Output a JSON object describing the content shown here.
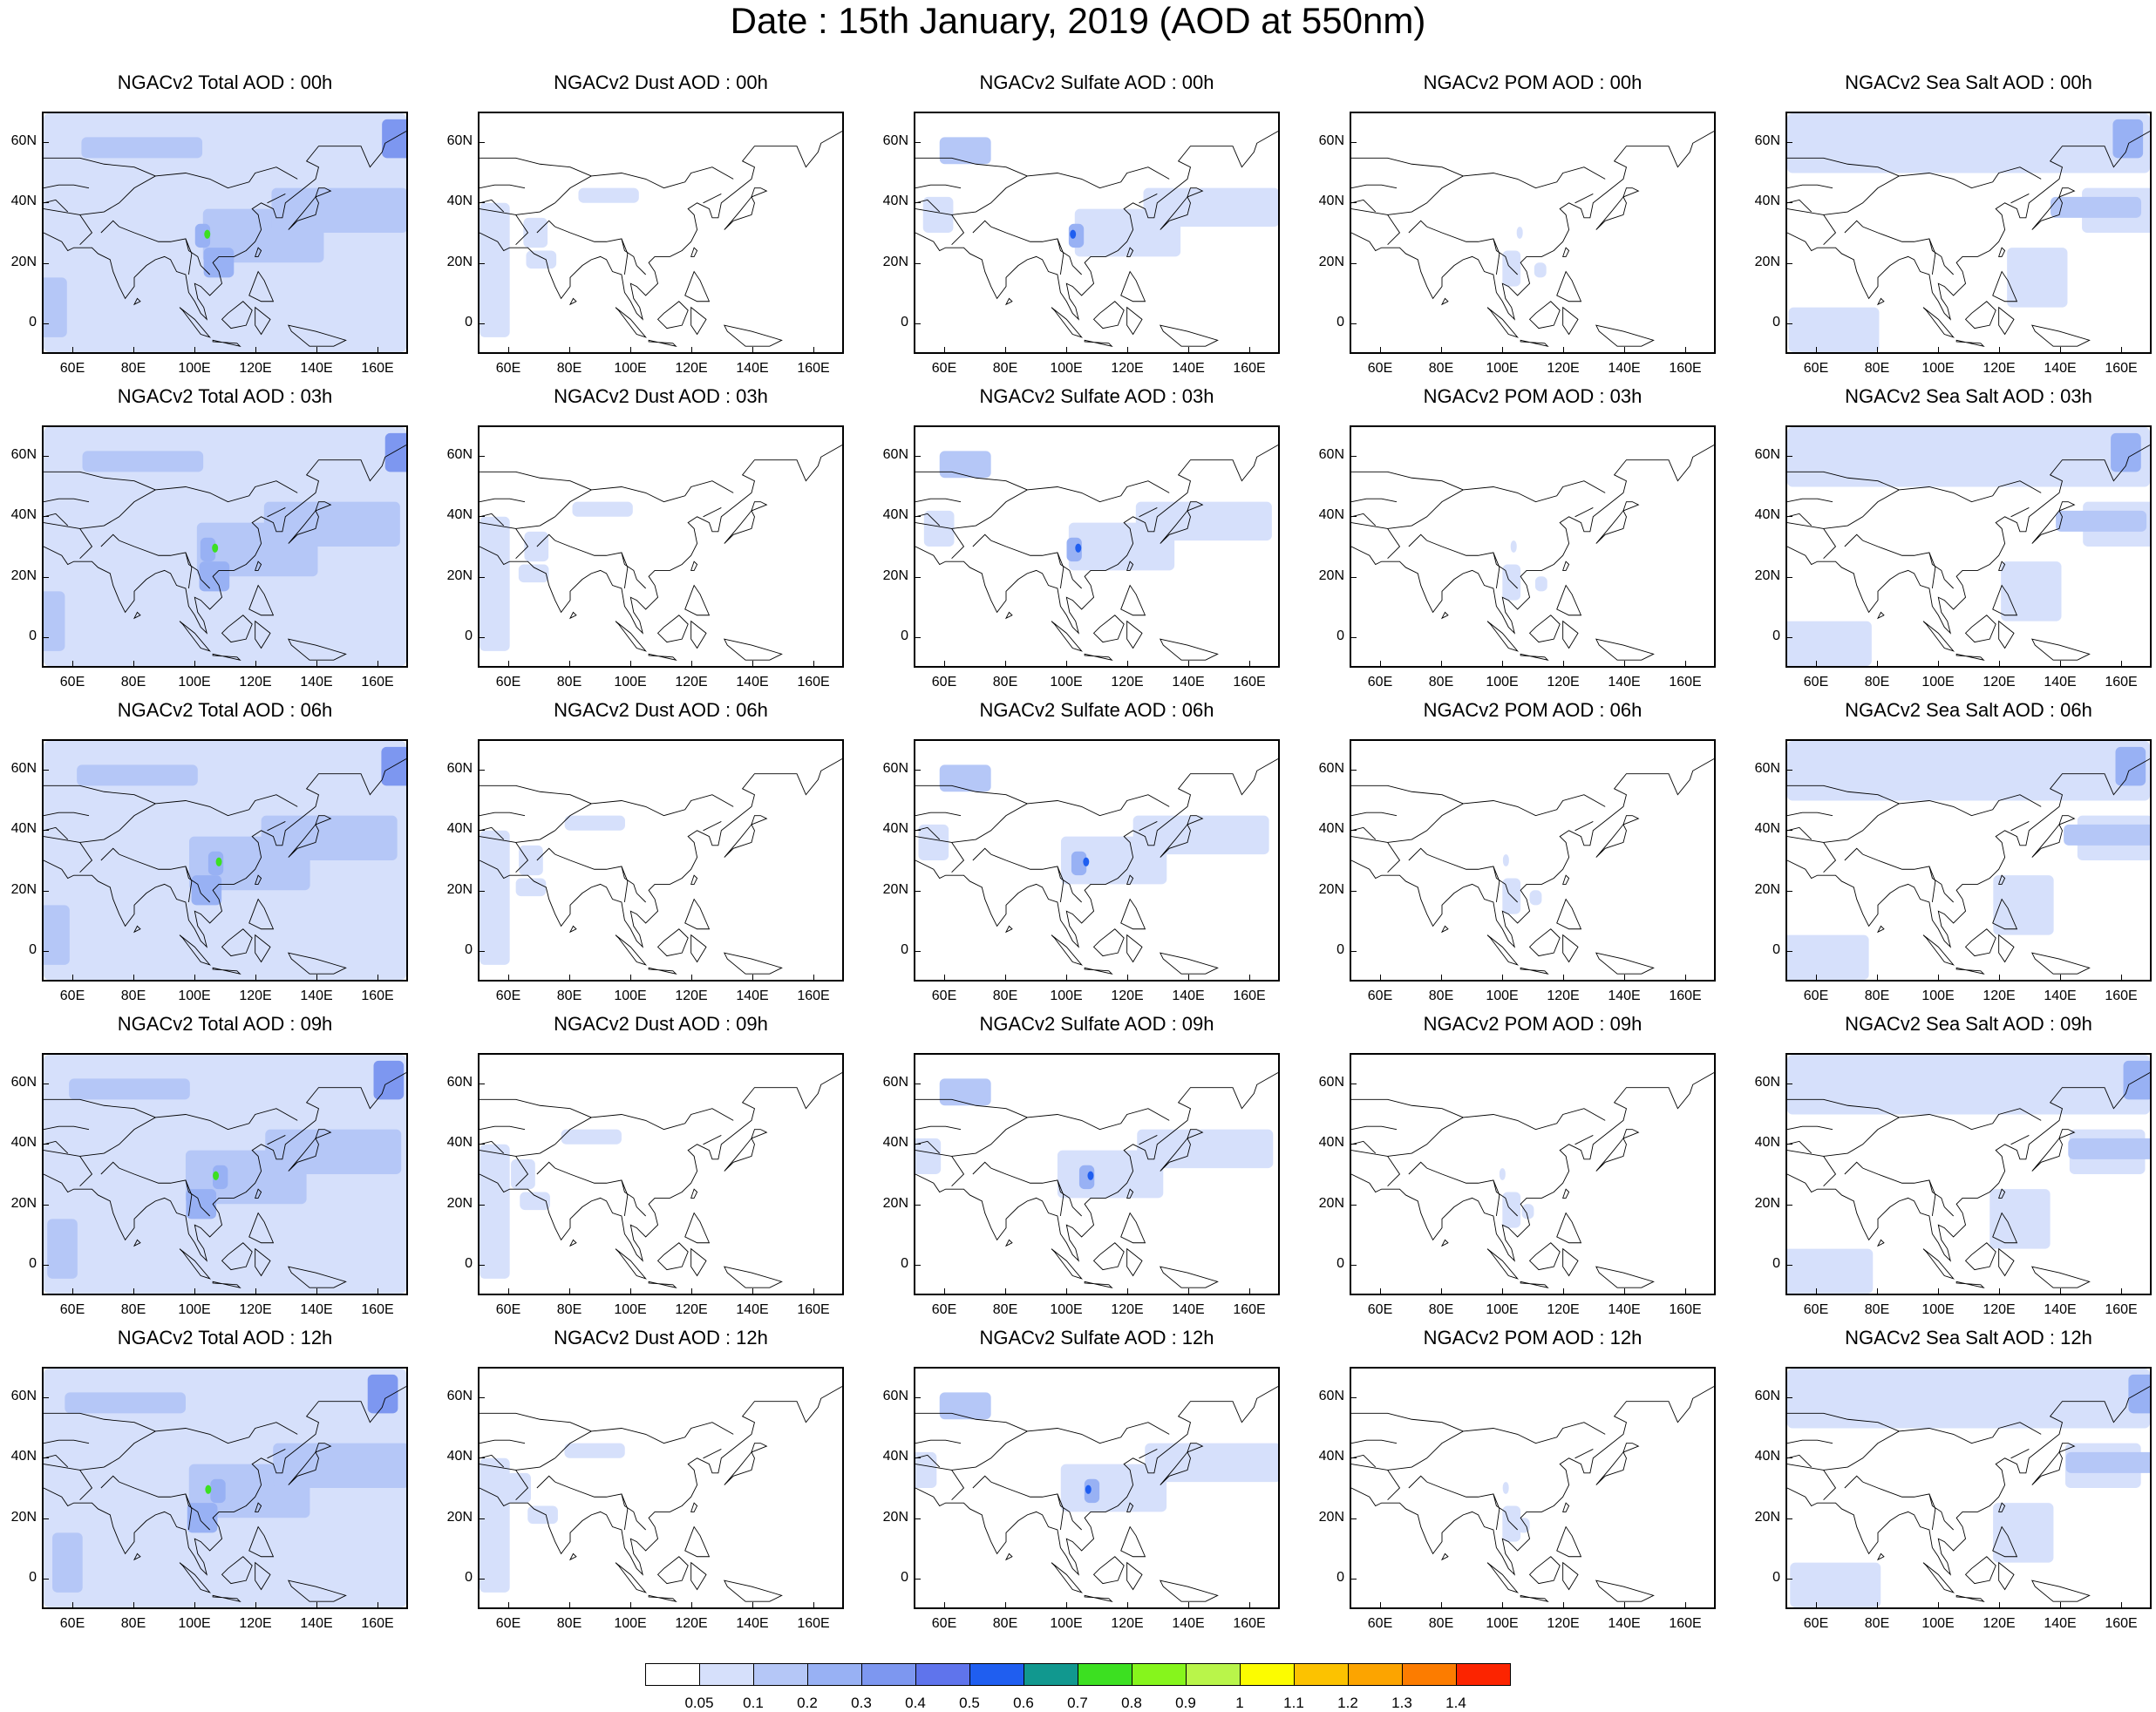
{
  "title": "Date : 15th January, 2019 (AOD at 550nm)",
  "panels": [
    [
      "NGACv2 Total AOD : 00h",
      "NGACv2 Dust AOD : 00h",
      "NGACv2 Sulfate AOD : 00h",
      "NGACv2 POM AOD : 00h",
      "NGACv2 Sea Salt AOD : 00h"
    ],
    [
      "NGACv2 Total AOD : 03h",
      "NGACv2 Dust AOD : 03h",
      "NGACv2 Sulfate AOD : 03h",
      "NGACv2 POM AOD : 03h",
      "NGACv2 Sea Salt AOD : 03h"
    ],
    [
      "NGACv2 Total AOD : 06h",
      "NGACv2 Dust AOD : 06h",
      "NGACv2 Sulfate AOD : 06h",
      "NGACv2 POM AOD : 06h",
      "NGACv2 Sea Salt AOD : 06h"
    ],
    [
      "NGACv2 Total AOD : 09h",
      "NGACv2 Dust AOD : 09h",
      "NGACv2 Sulfate AOD : 09h",
      "NGACv2 POM AOD : 09h",
      "NGACv2 Sea Salt  AOD : 09h"
    ],
    [
      "NGACv2 Total AOD  : 12h",
      "NGACv2 Dust AOD : 12h",
      "NGACv2 Sulfate AOD : 12h",
      "NGACv2 POM  AOD : 12h",
      "NGACv2 Sea Salt  AOD : 12h"
    ]
  ],
  "axes": {
    "x_ticks": [
      "60E",
      "80E",
      "100E",
      "120E",
      "140E",
      "160E"
    ],
    "x_values": [
      60,
      80,
      100,
      120,
      140,
      160
    ],
    "y_ticks": [
      "60N",
      "40N",
      "20N",
      "0"
    ],
    "y_values": [
      60,
      40,
      20,
      0
    ],
    "lon_range": [
      50,
      170
    ],
    "lat_range": [
      -10,
      70
    ]
  },
  "colorbar": {
    "colors": [
      "#ffffff",
      "#d6e0fb",
      "#b5c7f7",
      "#98b1f4",
      "#7d97f0",
      "#5f74ec",
      "#1f5ef0",
      "#11988f",
      "#3ce021",
      "#86f51c",
      "#b9f54a",
      "#fcfc00",
      "#fcc200",
      "#fca400",
      "#fc7c00",
      "#fc2400"
    ],
    "labels": [
      "0.05",
      "0.1",
      "0.2",
      "0.3",
      "0.4",
      "0.5",
      "0.6",
      "0.7",
      "0.8",
      "0.9",
      "1",
      "1.1",
      "1.2",
      "1.3",
      "1.4"
    ]
  }
}
